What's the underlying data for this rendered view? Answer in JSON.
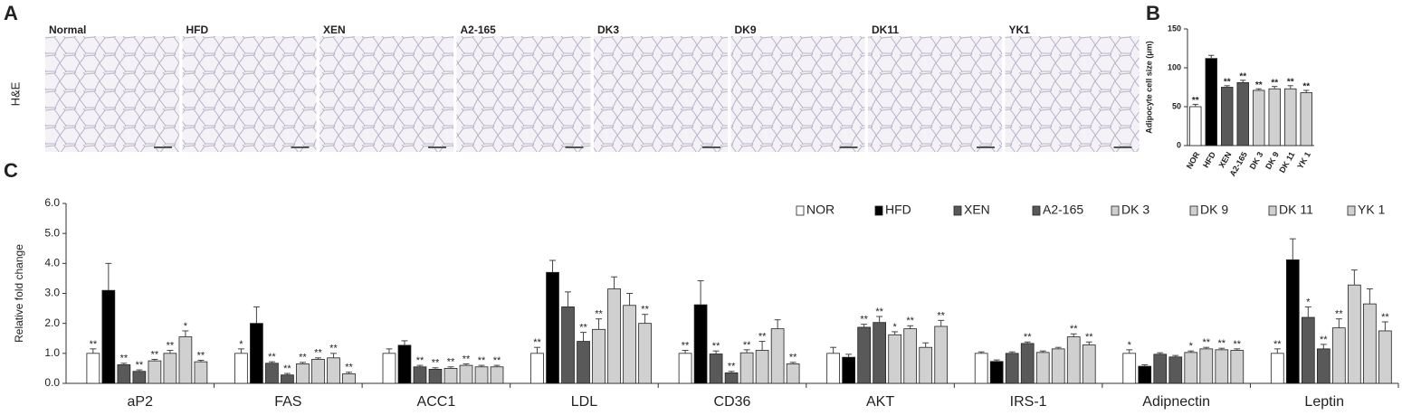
{
  "panel_a": {
    "panel": "A",
    "stain": "H&E",
    "images": [
      "Normal",
      "HFD",
      "XEN",
      "A2-165",
      "DK3",
      "DK9",
      "DK11",
      "YK1"
    ]
  },
  "chart_data": [
    {
      "type": "bar",
      "panel": "B",
      "ylabel": "Adipocyte cell size (μm)",
      "categories": [
        "NOR",
        "HFD",
        "XEN",
        "A2-165",
        "DK 3",
        "DK 9",
        "DK 11",
        "YK 1"
      ],
      "values": [
        50,
        112,
        75,
        81,
        71,
        73,
        73,
        68
      ],
      "errors": [
        3,
        4,
        2,
        3,
        2,
        3,
        4,
        3
      ],
      "annotations": [
        "**",
        null,
        "**",
        "**",
        "**",
        "**",
        "**",
        "**"
      ],
      "colors": [
        "#ffffff",
        "#000000",
        "#595959",
        "#595959",
        "#d0d0d0",
        "#d0d0d0",
        "#d0d0d0",
        "#d0d0d0"
      ],
      "ylim": [
        0,
        150
      ],
      "yticks": [
        0,
        50,
        100,
        150
      ]
    },
    {
      "type": "grouped-bar",
      "panel": "C",
      "ylabel": "Relative fold change",
      "categories": [
        "aP2",
        "FAS",
        "ACC1",
        "LDL",
        "CD36",
        "AKT",
        "IRS-1",
        "Adipnectin",
        "Leptin"
      ],
      "ylim": [
        0,
        6
      ],
      "yticks": [
        {
          "value": 0,
          "label": "0.0"
        },
        {
          "value": 1,
          "label": "1.0"
        },
        {
          "value": 2,
          "label": "2.0"
        },
        {
          "value": 3,
          "label": "3.0"
        },
        {
          "value": 4,
          "label": "4.0"
        },
        {
          "value": 5,
          "label": "5.0"
        },
        {
          "value": 6,
          "label": "6.0"
        }
      ],
      "series": [
        {
          "name": "NOR",
          "color": "#ffffff",
          "values": [
            1.0,
            1.0,
            1.0,
            1.0,
            1.0,
            1.0,
            1.0,
            1.0,
            1.0
          ],
          "errors": [
            0.15,
            0.15,
            0.15,
            0.2,
            0.1,
            0.2,
            0.05,
            0.12,
            0.15
          ],
          "annotations": [
            "**",
            "*",
            null,
            "**",
            "**",
            null,
            null,
            "*",
            "**"
          ]
        },
        {
          "name": "HFD",
          "color": "#000000",
          "values": [
            3.1,
            2.0,
            1.27,
            3.7,
            2.62,
            0.87,
            0.73,
            0.57,
            4.12
          ],
          "errors": [
            0.9,
            0.55,
            0.15,
            0.4,
            0.8,
            0.1,
            0.05,
            0.05,
            0.7
          ],
          "annotations": [
            null,
            null,
            null,
            null,
            null,
            null,
            null,
            null,
            null
          ]
        },
        {
          "name": "XEN",
          "color": "#595959",
          "values": [
            0.62,
            0.67,
            0.55,
            2.55,
            0.98,
            1.87,
            1.0,
            0.97,
            2.2
          ],
          "errors": [
            0.05,
            0.05,
            0.05,
            0.5,
            0.1,
            0.1,
            0.05,
            0.05,
            0.35
          ],
          "annotations": [
            "**",
            "**",
            "**",
            null,
            "**",
            "**",
            null,
            null,
            "*"
          ]
        },
        {
          "name": "A2-165",
          "color": "#595959",
          "values": [
            0.4,
            0.28,
            0.47,
            1.4,
            0.35,
            2.03,
            1.33,
            0.88,
            1.15
          ],
          "errors": [
            0.05,
            0.05,
            0.05,
            0.3,
            0.05,
            0.2,
            0.05,
            0.05,
            0.15
          ],
          "annotations": [
            "**",
            "**",
            "**",
            "**",
            "**",
            "**",
            "**",
            null,
            "**"
          ]
        },
        {
          "name": "DK 3",
          "color": "#d0d0d0",
          "values": [
            0.75,
            0.65,
            0.5,
            1.8,
            1.02,
            1.62,
            1.03,
            1.03,
            1.85
          ],
          "errors": [
            0.05,
            0.05,
            0.05,
            0.35,
            0.1,
            0.1,
            0.05,
            0.05,
            0.3
          ],
          "annotations": [
            "**",
            "**",
            "**",
            "**",
            "**",
            "*",
            null,
            "*",
            "**"
          ]
        },
        {
          "name": "DK 9",
          "color": "#d0d0d0",
          "values": [
            1.0,
            0.8,
            0.6,
            3.15,
            1.1,
            1.82,
            1.15,
            1.15,
            3.28
          ],
          "errors": [
            0.1,
            0.05,
            0.05,
            0.4,
            0.3,
            0.1,
            0.05,
            0.05,
            0.5
          ],
          "annotations": [
            "**",
            "**",
            "**",
            null,
            "**",
            "**",
            null,
            "**",
            null
          ]
        },
        {
          "name": "DK 11",
          "color": "#d0d0d0",
          "values": [
            1.55,
            0.85,
            0.55,
            2.6,
            1.82,
            1.2,
            1.55,
            1.12,
            2.65
          ],
          "errors": [
            0.2,
            0.15,
            0.05,
            0.4,
            0.3,
            0.15,
            0.1,
            0.05,
            0.5
          ],
          "annotations": [
            "*",
            "**",
            "**",
            null,
            null,
            null,
            "**",
            "**",
            null
          ]
        },
        {
          "name": "YK 1",
          "color": "#d0d0d0",
          "values": [
            0.72,
            0.32,
            0.55,
            2.0,
            0.65,
            1.9,
            1.28,
            1.1,
            1.75
          ],
          "errors": [
            0.05,
            0.05,
            0.05,
            0.3,
            0.05,
            0.2,
            0.1,
            0.05,
            0.3
          ],
          "annotations": [
            "**",
            "**",
            "**",
            "**",
            "**",
            "**",
            "**",
            "**",
            "**"
          ]
        }
      ]
    }
  ]
}
